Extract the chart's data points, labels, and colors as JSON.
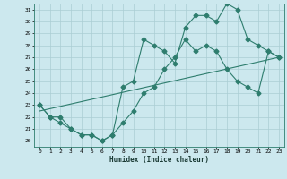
{
  "xlabel": "Humidex (Indice chaleur)",
  "bg_color": "#cce8ee",
  "grid_color": "#aacdd4",
  "line_color": "#2e7d6e",
  "xlim": [
    -0.5,
    23.5
  ],
  "ylim": [
    19.5,
    31.5
  ],
  "xticks": [
    0,
    1,
    2,
    3,
    4,
    5,
    6,
    7,
    8,
    9,
    10,
    11,
    12,
    13,
    14,
    15,
    16,
    17,
    18,
    19,
    20,
    21,
    22,
    23
  ],
  "yticks": [
    20,
    21,
    22,
    23,
    24,
    25,
    26,
    27,
    28,
    29,
    30,
    31
  ],
  "line1_x": [
    0,
    1,
    2,
    3,
    4,
    5,
    6,
    7,
    8,
    9,
    10,
    11,
    12,
    13,
    14,
    15,
    16,
    17,
    18,
    19,
    20,
    21,
    22,
    23
  ],
  "line1_y": [
    23,
    22,
    21.5,
    21,
    20.5,
    20.5,
    20,
    20.5,
    21.5,
    22.5,
    24,
    24.5,
    26,
    27,
    28.5,
    27.5,
    28,
    27.5,
    26,
    25,
    24.5,
    24,
    27.5,
    27
  ],
  "line2_x": [
    0,
    1,
    2,
    3,
    4,
    5,
    6,
    7,
    8,
    9,
    10,
    11,
    12,
    13,
    14,
    15,
    16,
    17,
    18,
    19,
    20,
    21,
    22,
    23
  ],
  "line2_y": [
    23,
    22,
    22,
    21,
    20.5,
    20.5,
    20,
    20.5,
    24.5,
    25,
    28.5,
    28,
    27.5,
    26.5,
    29.5,
    30.5,
    30.5,
    30,
    31.5,
    31,
    28.5,
    28,
    27.5,
    27
  ],
  "line3_x": [
    0,
    23
  ],
  "line3_y": [
    22.5,
    27
  ],
  "marker_size": 2.5,
  "line_width": 0.8
}
